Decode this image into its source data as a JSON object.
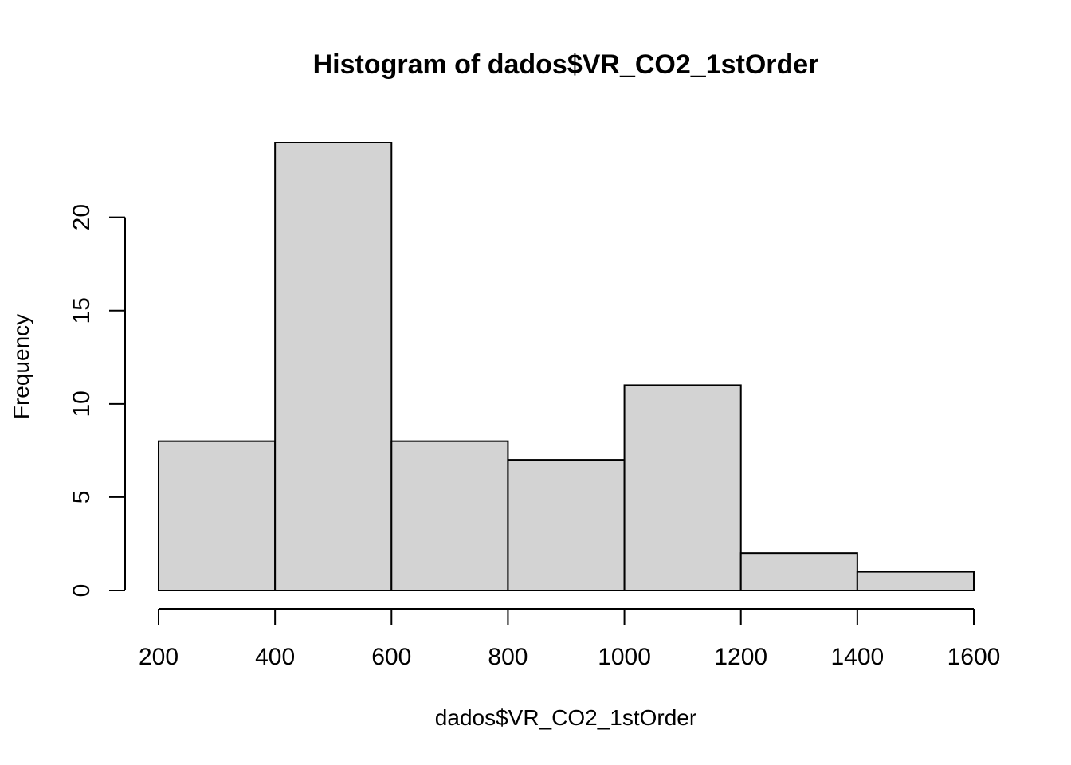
{
  "chart_data": {
    "type": "bar",
    "subtype": "histogram",
    "title": "Histogram of dados$VR_CO2_1stOrder",
    "xlabel": "dados$VR_CO2_1stOrder",
    "ylabel": "Frequency",
    "bins": [
      {
        "from": 200,
        "to": 400,
        "count": 8
      },
      {
        "from": 400,
        "to": 600,
        "count": 24
      },
      {
        "from": 600,
        "to": 800,
        "count": 8
      },
      {
        "from": 800,
        "to": 1000,
        "count": 7
      },
      {
        "from": 1000,
        "to": 1200,
        "count": 11
      },
      {
        "from": 1200,
        "to": 1400,
        "count": 2
      },
      {
        "from": 1400,
        "to": 1600,
        "count": 1
      }
    ],
    "x_ticks": [
      200,
      400,
      600,
      800,
      1000,
      1200,
      1400,
      1600
    ],
    "x_tick_labels": [
      "200",
      "400",
      "600",
      "800",
      "1000",
      "1200",
      "1400",
      "1600"
    ],
    "y_ticks": [
      0,
      5,
      10,
      15,
      20
    ],
    "y_tick_labels": [
      "0",
      "5",
      "10",
      "15",
      "20"
    ],
    "xlim": [
      200,
      1600
    ],
    "ylim": [
      0,
      24
    ],
    "grid": false,
    "legend": "none",
    "colors": {
      "bar_fill": "#d3d3d3",
      "bar_stroke": "#000000",
      "axis": "#000000",
      "background": "#ffffff"
    }
  }
}
